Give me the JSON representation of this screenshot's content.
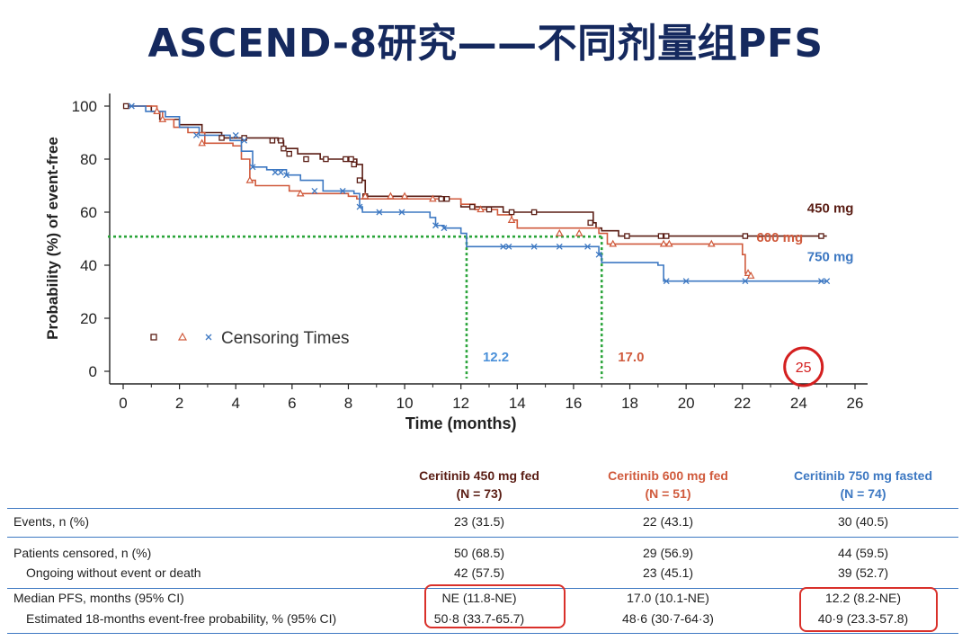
{
  "slide_title": "ASCEND-8研究——不同剂量组PFS",
  "chart_data": {
    "type": "line",
    "ylabel": "Probability (%) of event-free",
    "xlabel": "Time (months)",
    "xlim": [
      0,
      26
    ],
    "ylim": [
      0,
      100
    ],
    "x_ticks": [
      0,
      2,
      4,
      6,
      8,
      10,
      12,
      14,
      16,
      18,
      20,
      22,
      24,
      26
    ],
    "y_ticks": [
      0,
      20,
      40,
      60,
      80,
      100
    ],
    "grid": false,
    "legend": {
      "placement": "bottom-left",
      "text": "Censoring Times",
      "symbols": [
        "□",
        "△",
        "×"
      ]
    },
    "series": [
      {
        "name": "450 mg",
        "color": "#5a1d14",
        "marker": "square",
        "points": [
          [
            0,
            100
          ],
          [
            1.0,
            98
          ],
          [
            1.3,
            95
          ],
          [
            2.0,
            93
          ],
          [
            2.8,
            90
          ],
          [
            3.5,
            88
          ],
          [
            5.5,
            87
          ],
          [
            5.7,
            84
          ],
          [
            6.2,
            82
          ],
          [
            7.0,
            80
          ],
          [
            8.3,
            78
          ],
          [
            8.5,
            72
          ],
          [
            8.6,
            66
          ],
          [
            11.3,
            65
          ],
          [
            12.0,
            62
          ],
          [
            13.5,
            60
          ],
          [
            16.7,
            56
          ],
          [
            16.8,
            54
          ],
          [
            17.0,
            53
          ],
          [
            17.6,
            51
          ],
          [
            25,
            51
          ]
        ],
        "censor": [
          [
            0.1,
            100
          ],
          [
            3.5,
            88
          ],
          [
            4.3,
            88
          ],
          [
            5.3,
            87
          ],
          [
            5.6,
            87
          ],
          [
            5.7,
            84
          ],
          [
            5.9,
            82
          ],
          [
            6.5,
            80
          ],
          [
            7.2,
            80
          ],
          [
            7.9,
            80
          ],
          [
            8.1,
            80
          ],
          [
            8.2,
            78
          ],
          [
            8.4,
            72
          ],
          [
            8.6,
            66
          ],
          [
            11.3,
            65
          ],
          [
            11.5,
            65
          ],
          [
            12.4,
            62
          ],
          [
            13.0,
            61
          ],
          [
            13.8,
            60
          ],
          [
            14.6,
            60
          ],
          [
            16.6,
            56
          ],
          [
            17.9,
            51
          ],
          [
            19.1,
            51
          ],
          [
            19.3,
            51
          ],
          [
            22.1,
            51
          ],
          [
            24.8,
            51
          ]
        ]
      },
      {
        "name": "600 mg",
        "color": "#d05a3c",
        "marker": "triangle",
        "points": [
          [
            0,
            100
          ],
          [
            1.2,
            98
          ],
          [
            1.4,
            95
          ],
          [
            1.8,
            92
          ],
          [
            2.3,
            90
          ],
          [
            2.9,
            86
          ],
          [
            3.9,
            85
          ],
          [
            4.2,
            80
          ],
          [
            4.5,
            72
          ],
          [
            4.7,
            70
          ],
          [
            5.9,
            68
          ],
          [
            6.3,
            67
          ],
          [
            8.0,
            66
          ],
          [
            8.3,
            65
          ],
          [
            12.0,
            63
          ],
          [
            12.5,
            61
          ],
          [
            13.3,
            59
          ],
          [
            13.8,
            57
          ],
          [
            14.0,
            54
          ],
          [
            16.9,
            52
          ],
          [
            17.2,
            48
          ],
          [
            22.0,
            44
          ],
          [
            22.1,
            37
          ],
          [
            22.3,
            36
          ]
        ],
        "censor": [
          [
            1.2,
            98
          ],
          [
            1.4,
            95
          ],
          [
            2.8,
            86
          ],
          [
            4.5,
            72
          ],
          [
            6.3,
            67
          ],
          [
            8.6,
            66
          ],
          [
            9.5,
            66
          ],
          [
            10.0,
            66
          ],
          [
            11.0,
            65
          ],
          [
            12.7,
            61
          ],
          [
            13.8,
            57
          ],
          [
            15.5,
            52
          ],
          [
            16.2,
            52
          ],
          [
            17.4,
            48
          ],
          [
            19.2,
            48
          ],
          [
            19.4,
            48
          ],
          [
            20.9,
            48
          ],
          [
            22.2,
            37
          ],
          [
            22.3,
            36
          ]
        ]
      },
      {
        "name": "750 mg",
        "color": "#3d78c2",
        "marker": "x",
        "points": [
          [
            0,
            100
          ],
          [
            0.8,
            98
          ],
          [
            1.5,
            96
          ],
          [
            2.0,
            92
          ],
          [
            2.7,
            89
          ],
          [
            3.8,
            87
          ],
          [
            4.2,
            83
          ],
          [
            4.6,
            77
          ],
          [
            5.1,
            76
          ],
          [
            5.8,
            74
          ],
          [
            6.3,
            72
          ],
          [
            7.1,
            68
          ],
          [
            8.2,
            67
          ],
          [
            8.4,
            62
          ],
          [
            8.5,
            60
          ],
          [
            10.9,
            58
          ],
          [
            11.1,
            55
          ],
          [
            11.4,
            54
          ],
          [
            12.0,
            52
          ],
          [
            12.2,
            47
          ],
          [
            16.7,
            47
          ],
          [
            16.9,
            44
          ],
          [
            17.0,
            41
          ],
          [
            19.0,
            40
          ],
          [
            19.2,
            34
          ],
          [
            25.0,
            34
          ]
        ],
        "censor": [
          [
            0.3,
            100
          ],
          [
            2.6,
            89
          ],
          [
            4.0,
            89
          ],
          [
            4.3,
            87
          ],
          [
            4.6,
            77
          ],
          [
            5.4,
            75
          ],
          [
            5.6,
            75
          ],
          [
            5.8,
            74
          ],
          [
            6.8,
            68
          ],
          [
            7.8,
            68
          ],
          [
            8.4,
            62
          ],
          [
            9.1,
            60
          ],
          [
            9.9,
            60
          ],
          [
            11.1,
            55
          ],
          [
            11.4,
            54
          ],
          [
            13.5,
            47
          ],
          [
            13.7,
            47
          ],
          [
            14.6,
            47
          ],
          [
            15.5,
            47
          ],
          [
            16.5,
            47
          ],
          [
            16.9,
            44
          ],
          [
            19.3,
            34
          ],
          [
            20.0,
            34
          ],
          [
            22.1,
            34
          ],
          [
            24.8,
            34
          ],
          [
            25.0,
            34
          ]
        ]
      }
    ],
    "annotations": [
      {
        "text": "12.2",
        "x": 12.2,
        "color": "#4a90d9"
      },
      {
        "text": "17.0",
        "x": 17.0,
        "color": "#d05a3c"
      },
      {
        "text": "25",
        "x": 25,
        "color": "#d42020"
      }
    ],
    "reference_lines": {
      "color": "#2aa43a",
      "median_y": 50.8,
      "verticals": [
        12.2,
        17.0
      ]
    }
  },
  "table": {
    "columns": [
      {
        "title": "Ceritinib 450 mg fed",
        "n": "(N = 73)",
        "color": "#5a1d14"
      },
      {
        "title": "Ceritinib 600 mg fed",
        "n": "(N = 51)",
        "color": "#d05a3c"
      },
      {
        "title": "Ceritinib 750 mg fasted",
        "n": "(N = 74)",
        "color": "#3d78c2"
      }
    ],
    "rows": [
      {
        "label": "Events, n (%)",
        "values": [
          "23 (31.5)",
          "22 (43.1)",
          "30 (40.5)"
        ]
      },
      {
        "label": "Patients censored, n (%)",
        "values": [
          "50 (68.5)",
          "29 (56.9)",
          "44 (59.5)"
        ]
      },
      {
        "label": "Ongoing without event or death",
        "values": [
          "42 (57.5)",
          "23 (45.1)",
          "39 (52.7)"
        ]
      },
      {
        "label": "Median PFS, months (95% CI)",
        "values": [
          "NE (11.8-NE)",
          "17.0 (10.1-NE)",
          "12.2 (8.2-NE)"
        ]
      },
      {
        "label": "Estimated 18-months event-free probability, % (95% CI)",
        "values": [
          "50·8 (33.7-65.7)",
          "48·6 (30·7-64·3)",
          "40·9 (23.3-57.8)"
        ]
      }
    ],
    "rule_color": "#3d78c2"
  }
}
